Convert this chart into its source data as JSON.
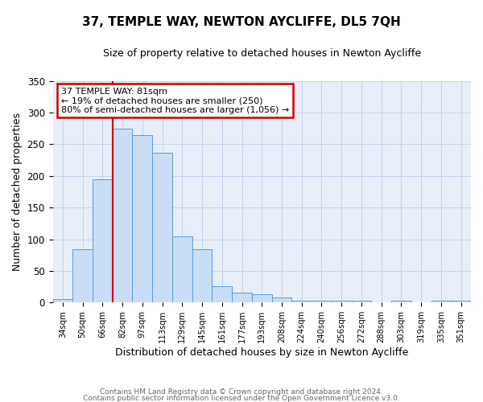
{
  "title": "37, TEMPLE WAY, NEWTON AYCLIFFE, DL5 7QH",
  "subtitle": "Size of property relative to detached houses in Newton Aycliffe",
  "xlabel": "Distribution of detached houses by size in Newton Aycliffe",
  "ylabel": "Number of detached properties",
  "bin_labels": [
    "34sqm",
    "50sqm",
    "66sqm",
    "82sqm",
    "97sqm",
    "113sqm",
    "129sqm",
    "145sqm",
    "161sqm",
    "177sqm",
    "193sqm",
    "208sqm",
    "224sqm",
    "240sqm",
    "256sqm",
    "272sqm",
    "288sqm",
    "303sqm",
    "319sqm",
    "335sqm",
    "351sqm"
  ],
  "bar_heights": [
    6,
    84,
    194,
    274,
    265,
    236,
    105,
    84,
    26,
    16,
    13,
    8,
    3,
    3,
    3,
    3,
    0,
    3,
    0,
    3,
    3
  ],
  "bar_color": "#c9ddf5",
  "bar_edge_color": "#5b9bd5",
  "vline_color": "#cc0000",
  "annotation_title": "37 TEMPLE WAY: 81sqm",
  "annotation_line1": "← 19% of detached houses are smaller (250)",
  "annotation_line2": "80% of semi-detached houses are larger (1,056) →",
  "annotation_box_edgecolor": "#cc0000",
  "ylim": [
    0,
    350
  ],
  "yticks": [
    0,
    50,
    100,
    150,
    200,
    250,
    300,
    350
  ],
  "footnote1": "Contains HM Land Registry data © Crown copyright and database right 2024.",
  "footnote2": "Contains public sector information licensed under the Open Government Licence v3.0.",
  "fig_bg_color": "#ffffff",
  "ax_bg_color": "#e8eef8"
}
